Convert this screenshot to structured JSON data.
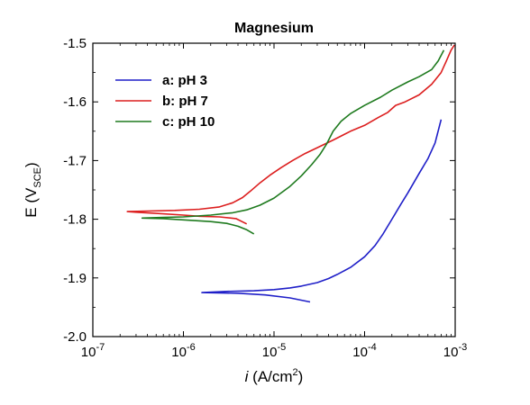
{
  "chart_data": {
    "type": "line",
    "title": "Magnesium",
    "xlabel": {
      "italic": "i",
      "rest": " (A/cm",
      "sup": "2",
      "end": ")"
    },
    "ylabel": {
      "main": "E (V",
      "sub": "SCE",
      "end": ")"
    },
    "xscale": "log",
    "xlim": [
      1e-07,
      0.001
    ],
    "ylim": [
      -2.0,
      -1.5
    ],
    "x_tick_labels": [
      {
        "base": "10",
        "exp": "-7"
      },
      {
        "base": "10",
        "exp": "-6"
      },
      {
        "base": "10",
        "exp": "-5"
      },
      {
        "base": "10",
        "exp": "-4"
      },
      {
        "base": "10",
        "exp": "-3"
      }
    ],
    "y_tick_labels": [
      "-2.0",
      "-1.9",
      "-1.8",
      "-1.7",
      "-1.6",
      "-1.5"
    ],
    "grid": false,
    "legend_position": "top-left",
    "series": [
      {
        "name": "a: pH 3",
        "color": "#1f1fc8",
        "points": [
          [
            2.5e-05,
            -1.941
          ],
          [
            1.5e-05,
            -1.934
          ],
          [
            8e-06,
            -1.929
          ],
          [
            4e-06,
            -1.926
          ],
          [
            1.6e-06,
            -1.925
          ],
          [
            3e-06,
            -1.923
          ],
          [
            6e-06,
            -1.922
          ],
          [
            1e-05,
            -1.92
          ],
          [
            1.5e-05,
            -1.917
          ],
          [
            2e-05,
            -1.914
          ],
          [
            3e-05,
            -1.908
          ],
          [
            4e-05,
            -1.901
          ],
          [
            5e-05,
            -1.894
          ],
          [
            7e-05,
            -1.882
          ],
          [
            0.0001,
            -1.864
          ],
          [
            0.00013,
            -1.845
          ],
          [
            0.00016,
            -1.825
          ],
          [
            0.0002,
            -1.8
          ],
          [
            0.00025,
            -1.775
          ],
          [
            0.0003,
            -1.755
          ],
          [
            0.0004,
            -1.722
          ],
          [
            0.0005,
            -1.697
          ],
          [
            0.0006,
            -1.67
          ],
          [
            0.0007,
            -1.63
          ]
        ]
      },
      {
        "name": "b: pH 7",
        "color": "#dc1e1e",
        "points": [
          [
            5e-06,
            -1.808
          ],
          [
            3.8e-06,
            -1.799
          ],
          [
            2.5e-06,
            -1.796
          ],
          [
            1.5e-06,
            -1.795
          ],
          [
            1e-06,
            -1.793
          ],
          [
            5e-07,
            -1.79
          ],
          [
            3e-07,
            -1.788
          ],
          [
            2.4e-07,
            -1.787
          ],
          [
            4e-07,
            -1.786
          ],
          [
            8e-07,
            -1.785
          ],
          [
            1.5e-06,
            -1.783
          ],
          [
            2.5e-06,
            -1.779
          ],
          [
            3.5e-06,
            -1.772
          ],
          [
            4.5e-06,
            -1.763
          ],
          [
            5.5e-06,
            -1.752
          ],
          [
            7e-06,
            -1.738
          ],
          [
            9e-06,
            -1.725
          ],
          [
            1.2e-05,
            -1.712
          ],
          [
            1.6e-05,
            -1.7
          ],
          [
            2.2e-05,
            -1.688
          ],
          [
            3e-05,
            -1.678
          ],
          [
            4.5e-05,
            -1.665
          ],
          [
            7e-05,
            -1.65
          ],
          [
            0.0001,
            -1.64
          ],
          [
            0.00014,
            -1.627
          ],
          [
            0.00018,
            -1.618
          ],
          [
            0.00022,
            -1.606
          ],
          [
            0.00028,
            -1.6
          ],
          [
            0.0004,
            -1.588
          ],
          [
            0.00055,
            -1.57
          ],
          [
            0.0007,
            -1.55
          ],
          [
            0.0008,
            -1.53
          ],
          [
            0.0009,
            -1.512
          ],
          [
            0.00098,
            -1.503
          ]
        ]
      },
      {
        "name": "c: pH 10",
        "color": "#1e7a1e",
        "points": [
          [
            6e-06,
            -1.825
          ],
          [
            5e-06,
            -1.818
          ],
          [
            4e-06,
            -1.812
          ],
          [
            3e-06,
            -1.807
          ],
          [
            2e-06,
            -1.804
          ],
          [
            1e-06,
            -1.801
          ],
          [
            6e-07,
            -1.799
          ],
          [
            3.5e-07,
            -1.798
          ],
          [
            6e-07,
            -1.797
          ],
          [
            1e-06,
            -1.796
          ],
          [
            2e-06,
            -1.793
          ],
          [
            3.5e-06,
            -1.789
          ],
          [
            5e-06,
            -1.784
          ],
          [
            7e-06,
            -1.776
          ],
          [
            1e-05,
            -1.764
          ],
          [
            1.5e-05,
            -1.744
          ],
          [
            2e-05,
            -1.726
          ],
          [
            2.6e-05,
            -1.707
          ],
          [
            3.2e-05,
            -1.69
          ],
          [
            3.8e-05,
            -1.672
          ],
          [
            4.5e-05,
            -1.65
          ],
          [
            5.5e-05,
            -1.633
          ],
          [
            7e-05,
            -1.62
          ],
          [
            0.0001,
            -1.606
          ],
          [
            0.00015,
            -1.592
          ],
          [
            0.0002,
            -1.58
          ],
          [
            0.0003,
            -1.566
          ],
          [
            0.0004,
            -1.557
          ],
          [
            0.00055,
            -1.545
          ],
          [
            0.00065,
            -1.53
          ],
          [
            0.00075,
            -1.512
          ]
        ]
      }
    ]
  }
}
